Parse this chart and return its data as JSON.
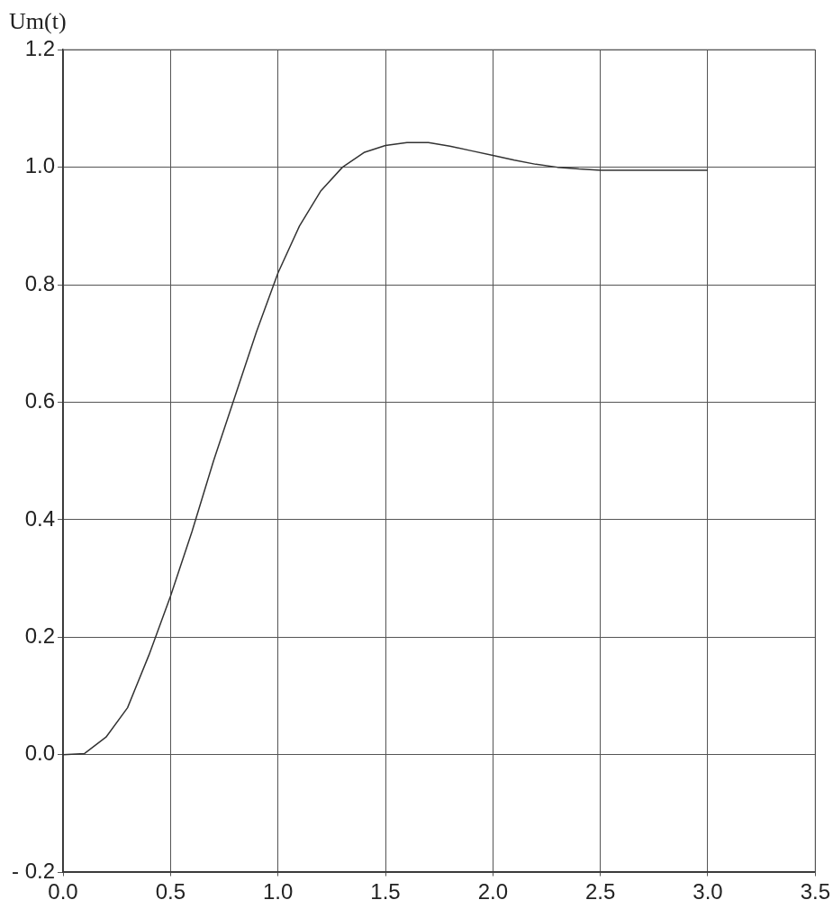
{
  "chart_data": {
    "type": "line",
    "title": "Um(t)",
    "series": [
      {
        "color": "#333333",
        "x": [
          0,
          0.1,
          0.2,
          0.3,
          0.4,
          0.5,
          0.6,
          0.7,
          0.8,
          0.9,
          1.0,
          1.1,
          1.2,
          1.3,
          1.4,
          1.5,
          1.6,
          1.7,
          1.8,
          1.9,
          2.0,
          2.1,
          2.2,
          2.3,
          2.4,
          2.5,
          2.6,
          2.8,
          3.0
        ],
        "values": [
          0,
          0.002,
          0.03,
          0.08,
          0.17,
          0.27,
          0.38,
          0.5,
          0.61,
          0.72,
          0.82,
          0.9,
          0.96,
          1.0,
          1.025,
          1.037,
          1.042,
          1.042,
          1.036,
          1.028,
          1.02,
          1.012,
          1.005,
          1.0,
          0.997,
          0.995,
          0.995,
          0.995,
          0.995
        ]
      }
    ],
    "xlim": [
      0,
      3.5
    ],
    "xticks": [
      {
        "value": 0,
        "label": "0.0"
      },
      0.5,
      {
        "value": 1,
        "label": "1.0"
      },
      1.5,
      {
        "value": 2,
        "label": "2.0"
      },
      2.5,
      {
        "value": 3,
        "label": "3.0"
      },
      3.5
    ],
    "ylim": [
      -0.2,
      1.2
    ],
    "yticks": [
      {
        "value": -0.2,
        "label": "- 0.2"
      },
      {
        "value": 0,
        "label": "0.0"
      },
      0.2,
      0.4,
      0.6,
      0.8,
      {
        "value": 1,
        "label": "1.0"
      },
      1.2
    ],
    "grid": true,
    "line_style": "solid",
    "marker": "none",
    "legend": false
  }
}
